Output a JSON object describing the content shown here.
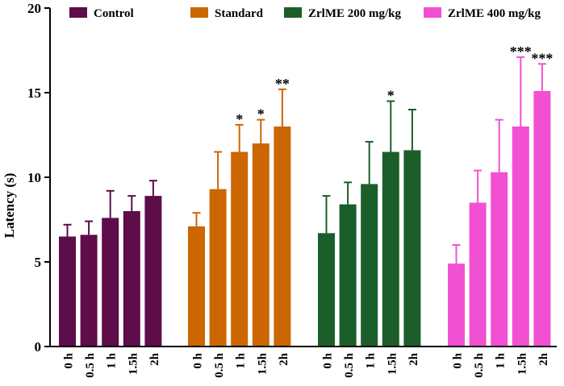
{
  "chart_data": {
    "type": "bar",
    "ylabel": "Latency (s)",
    "ylim": [
      0,
      20
    ],
    "yticks": [
      0,
      5,
      10,
      15,
      20
    ],
    "legend_position": "top",
    "categories": [
      "0 h",
      "0.5 h",
      "1 h",
      "1.5h",
      "2h"
    ],
    "series": [
      {
        "name": "Control",
        "color": "#5E0C4A",
        "values": [
          6.5,
          6.6,
          7.6,
          8.0,
          8.9
        ],
        "errors": [
          0.7,
          0.8,
          1.6,
          0.9,
          0.9
        ],
        "annotations": [
          "",
          "",
          "",
          "",
          ""
        ]
      },
      {
        "name": "Standard",
        "color": "#CC6600",
        "values": [
          7.1,
          9.3,
          11.5,
          12.0,
          13.0
        ],
        "errors": [
          0.8,
          2.2,
          1.6,
          1.4,
          2.2
        ],
        "annotations": [
          "",
          "",
          "*",
          "*",
          "**"
        ]
      },
      {
        "name": "ZrlME 200 mg/kg",
        "color": "#1B5E2A",
        "values": [
          6.7,
          8.4,
          9.6,
          11.5,
          11.6
        ],
        "errors": [
          2.2,
          1.3,
          2.5,
          3.0,
          2.4
        ],
        "annotations": [
          "",
          "",
          "",
          "*",
          ""
        ]
      },
      {
        "name": "ZrlME 400 mg/kg",
        "color": "#F250D2",
        "values": [
          4.9,
          8.5,
          10.3,
          13.0,
          15.1
        ],
        "errors": [
          1.1,
          1.9,
          3.1,
          4.1,
          1.6
        ],
        "annotations": [
          "",
          "",
          "",
          "***",
          "***"
        ]
      }
    ]
  }
}
